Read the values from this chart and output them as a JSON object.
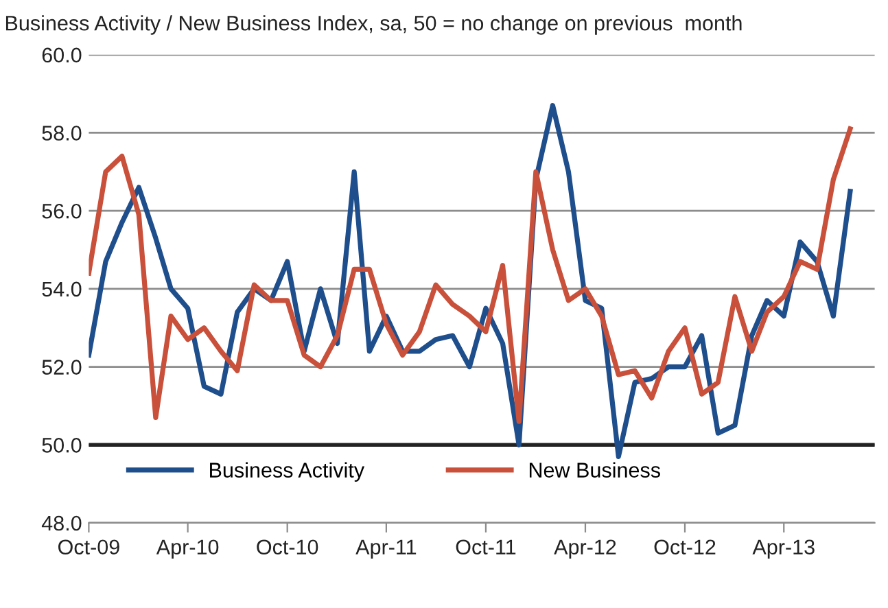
{
  "chart_data": {
    "type": "line",
    "title": "Business Activity / New Business Index, sa, 50 = no change on previous  month",
    "x": [
      "2009-10",
      "2009-11",
      "2009-12",
      "2010-01",
      "2010-02",
      "2010-03",
      "2010-04",
      "2010-05",
      "2010-06",
      "2010-07",
      "2010-08",
      "2010-09",
      "2010-10",
      "2010-11",
      "2010-12",
      "2011-01",
      "2011-02",
      "2011-03",
      "2011-04",
      "2011-05",
      "2011-06",
      "2011-07",
      "2011-08",
      "2011-09",
      "2011-10",
      "2011-11",
      "2011-12",
      "2012-01",
      "2012-02",
      "2012-03",
      "2012-04",
      "2012-05",
      "2012-06",
      "2012-07",
      "2012-08",
      "2012-09",
      "2012-10",
      "2012-11",
      "2012-12",
      "2013-01",
      "2013-02",
      "2013-03",
      "2013-04",
      "2013-05",
      "2013-06",
      "2013-07",
      "2013-08"
    ],
    "series": [
      {
        "name": "Business Activity",
        "color": "#1f4e8c",
        "values": [
          52.3,
          54.7,
          55.7,
          56.6,
          55.3,
          54.0,
          53.5,
          51.5,
          51.3,
          53.4,
          54.0,
          53.7,
          54.7,
          52.4,
          54.0,
          52.6,
          57.0,
          52.4,
          53.3,
          52.4,
          52.4,
          52.7,
          52.8,
          52.0,
          53.5,
          52.6,
          50.0,
          56.8,
          58.7,
          57.0,
          53.7,
          53.5,
          49.7,
          51.6,
          51.7,
          52.0,
          52.0,
          52.8,
          50.3,
          50.5,
          52.8,
          53.7,
          53.3,
          55.2,
          54.7,
          53.3,
          56.5
        ]
      },
      {
        "name": "New Business",
        "color": "#c9503a",
        "values": [
          54.4,
          57.0,
          57.4,
          55.9,
          50.7,
          53.3,
          52.7,
          53.0,
          52.4,
          51.9,
          54.1,
          53.7,
          53.7,
          52.3,
          52.0,
          52.8,
          54.5,
          54.5,
          53.1,
          52.3,
          52.9,
          54.1,
          53.6,
          53.3,
          52.9,
          54.6,
          50.6,
          57.0,
          55.0,
          53.7,
          54.0,
          53.3,
          51.8,
          51.9,
          51.2,
          52.4,
          53.0,
          51.3,
          51.6,
          53.8,
          52.4,
          53.4,
          53.8,
          54.7,
          54.5,
          56.8,
          58.1
        ]
      }
    ],
    "xlim": [
      "2009-10",
      "2013-09-15"
    ],
    "xticks": [
      {
        "value": "2009-10",
        "label": "Oct-09"
      },
      {
        "value": "2010-04",
        "label": "Apr-10"
      },
      {
        "value": "2010-10",
        "label": "Oct-10"
      },
      {
        "value": "2011-04",
        "label": "Apr-11"
      },
      {
        "value": "2011-10",
        "label": "Oct-11"
      },
      {
        "value": "2012-04",
        "label": "Apr-12"
      },
      {
        "value": "2012-10",
        "label": "Oct-12"
      },
      {
        "value": "2013-04",
        "label": "Apr-13"
      }
    ],
    "ylim": [
      48,
      60
    ],
    "yticks": [
      {
        "value": 48,
        "label": "48.0"
      },
      {
        "value": 50,
        "label": "50.0"
      },
      {
        "value": 52,
        "label": "52.0"
      },
      {
        "value": 54,
        "label": "54.0"
      },
      {
        "value": 56,
        "label": "56.0"
      },
      {
        "value": 58,
        "label": "58.0"
      },
      {
        "value": 60,
        "label": "60.0"
      }
    ],
    "ref_lines": [
      {
        "axis": "y",
        "value": 50,
        "color": "#222222"
      }
    ],
    "grid": "y",
    "legend": "bottom left",
    "marker": "none",
    "line_style": "solid"
  }
}
